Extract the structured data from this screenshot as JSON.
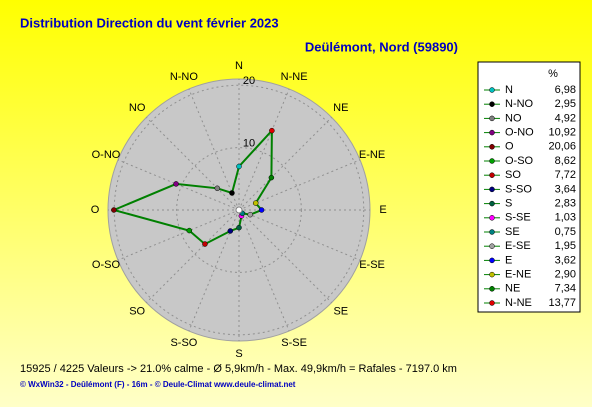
{
  "chart_data": {
    "type": "windrose",
    "title": "Distribution Direction du vent   février 2023",
    "subtitle": "Deülémont, Nord (59890)",
    "categories": [
      "N",
      "N-NO",
      "NO",
      "O-NO",
      "O",
      "O-SO",
      "SO",
      "S-SO",
      "S",
      "S-SE",
      "SE",
      "E-SE",
      "E",
      "E-NE",
      "NE",
      "N-NE"
    ],
    "values": [
      6.98,
      2.95,
      4.92,
      10.92,
      20.06,
      8.62,
      7.72,
      3.64,
      2.83,
      1.03,
      0.75,
      1.95,
      3.62,
      2.9,
      7.34,
      13.77
    ],
    "value_labels": [
      "6,98",
      "2,95",
      "4,92",
      "10,92",
      "20,06",
      "8,62",
      "7,72",
      "3,64",
      "2,83",
      "1,03",
      "0,75",
      "1,95",
      "3,62",
      "2,90",
      "7,34",
      "13,77"
    ],
    "point_colors": [
      "#00c0c0",
      "#000000",
      "#808080",
      "#800080",
      "#800000",
      "#00a000",
      "#c00000",
      "#000080",
      "#006040",
      "#ff00ff",
      "#008080",
      "#a0a0a0",
      "#0000ff",
      "#c0c000",
      "#008000",
      "#e00000"
    ],
    "color": "#008000",
    "legend_unit": "%",
    "rlim": [
      0,
      21
    ],
    "rticks": [
      10,
      20
    ],
    "grid": true,
    "footer": [
      "15925 / 4225 Valeurs  -> 21.0% calme   -   Ø 5,9km/h   -  Max. 49,9km/h = Rafales   -   7197.0 km",
      "© WxWin32  -  Deûlémont (F) - 16m  -  © Deule-Climat  www.deule-climat.net"
    ]
  }
}
